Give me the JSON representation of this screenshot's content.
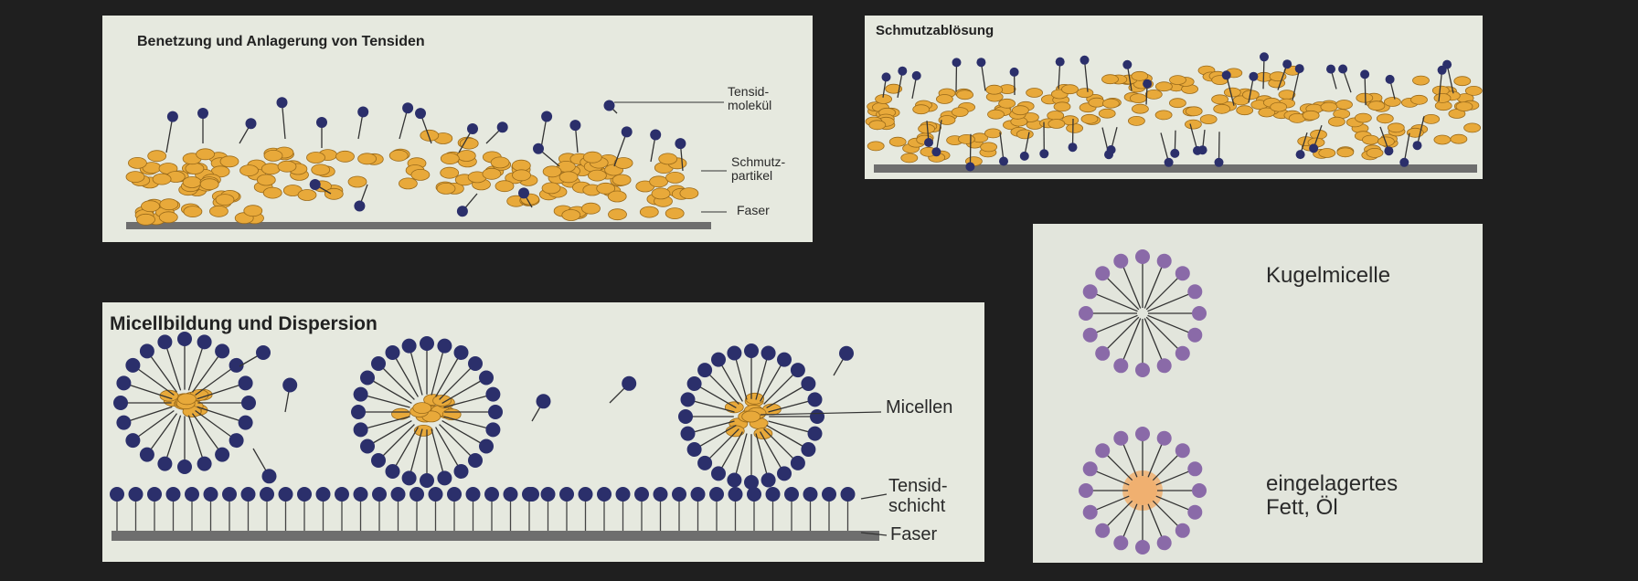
{
  "panels": {
    "wetting": {
      "title": "Benetzung und Anlagerung von Tensiden",
      "labels": {
        "surfactant_line1": "Tensid-",
        "surfactant_line2": "molekül",
        "dirt_line1": "Schmutz-",
        "dirt_line2": "partikel",
        "fiber": "Faser"
      }
    },
    "detachment": {
      "title": "Schmutzablösung"
    },
    "micelle": {
      "title": "Micellbildung und Dispersion",
      "labels": {
        "micelles": "Micellen",
        "layer_line1": "Tensid-",
        "layer_line2": "schicht",
        "fiber": "Faser"
      }
    },
    "legend": {
      "spherical_micelle": "Kugelmicelle",
      "embedded_line1": "eingelagertes",
      "embedded_line2": "Fett, Öl"
    }
  },
  "colors": {
    "surfactant_head": "#2b2f6b",
    "dirt_particle": "#e8a93a",
    "fiber": "#6e6e6e",
    "legend_head": "#8a6aa8",
    "oil_core": "#f0b070"
  }
}
